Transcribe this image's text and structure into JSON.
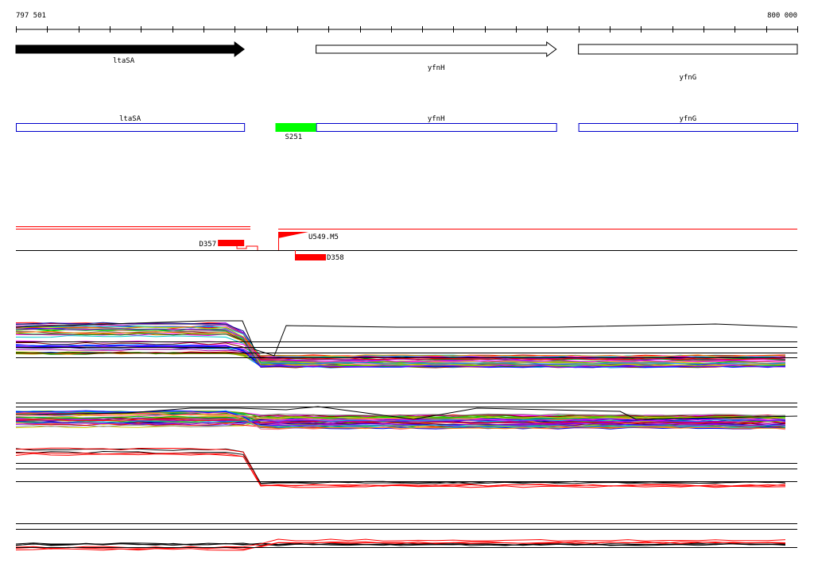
{
  "ruler": {
    "start_label": "797 501",
    "end_label": "800 000",
    "start": 797501,
    "end": 800000
  },
  "colors": {
    "background": "#ffffff",
    "gene_black": "#000000",
    "gene_outline_blue": "#0000cc",
    "probe_green": "#00ff00",
    "segment_red": "#ff0000"
  },
  "genes_top": [
    {
      "label": "ltaSA",
      "start": 797501,
      "end": 798231,
      "strand": "+",
      "filled": true
    },
    {
      "label": "yfnH",
      "start": 798461,
      "end": 799229,
      "strand": "+",
      "filled": false
    },
    {
      "label": "yfnG",
      "start": 799300,
      "end": 800000,
      "strand": "+",
      "filled": false
    }
  ],
  "genes_annot": [
    {
      "label": "ltaSA",
      "start": 797501,
      "end": 798231
    },
    {
      "label": "yfnH",
      "start": 798461,
      "end": 799229
    },
    {
      "label": "yfnG",
      "start": 799300,
      "end": 800000
    }
  ],
  "probe": {
    "label": "S251",
    "start": 798331,
    "end": 798461
  },
  "features": [
    {
      "label": "D357",
      "start": 798142,
      "end": 798231
    },
    {
      "label": "U549.M5",
      "start": 798331,
      "end": 798431
    },
    {
      "label": "D358",
      "start": 798387,
      "end": 798486
    }
  ],
  "tracks": [
    {
      "name": "profile-track-1",
      "description_levels": "many colored expression profiles dropping near 798 270"
    },
    {
      "name": "profile-track-2",
      "description_levels": "many colored expression profiles roughly flat"
    },
    {
      "name": "profile-track-3",
      "description_levels": "black and red profiles dropping near 798 231"
    },
    {
      "name": "profile-track-4",
      "description_levels": "black and red profiles roughly flat"
    }
  ]
}
